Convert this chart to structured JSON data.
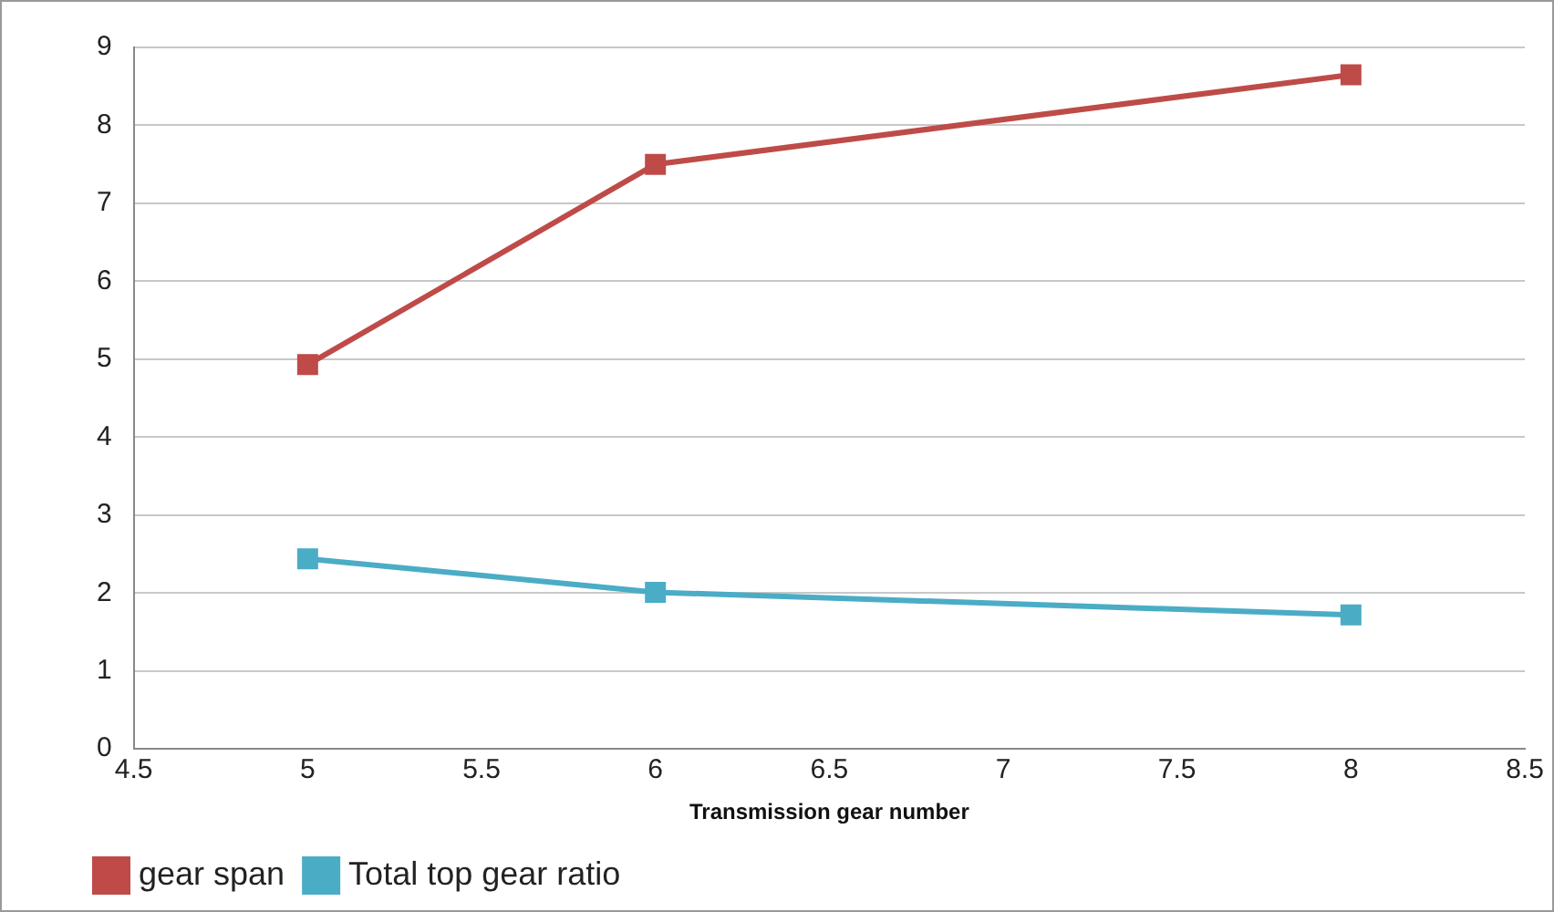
{
  "chart_data": {
    "type": "line",
    "xlabel": "Transmission gear number",
    "x": [
      5,
      6,
      8
    ],
    "series": [
      {
        "name": "gear span",
        "color": "#be4b48",
        "values": [
          4.93,
          7.5,
          8.65
        ]
      },
      {
        "name": "Total top gear ratio",
        "color": "#4bacc6",
        "values": [
          2.44,
          2.01,
          1.72
        ]
      }
    ],
    "xlim": [
      4.5,
      8.5
    ],
    "xticks": [
      4.5,
      5,
      5.5,
      6,
      6.5,
      7,
      7.5,
      8,
      8.5
    ],
    "ylim": [
      0,
      9
    ],
    "yticks": [
      0,
      1,
      2,
      3,
      4,
      5,
      6,
      7,
      8,
      9
    ],
    "grid": "y",
    "legend": "bottom left",
    "marker": "square",
    "line_style": "solid"
  }
}
